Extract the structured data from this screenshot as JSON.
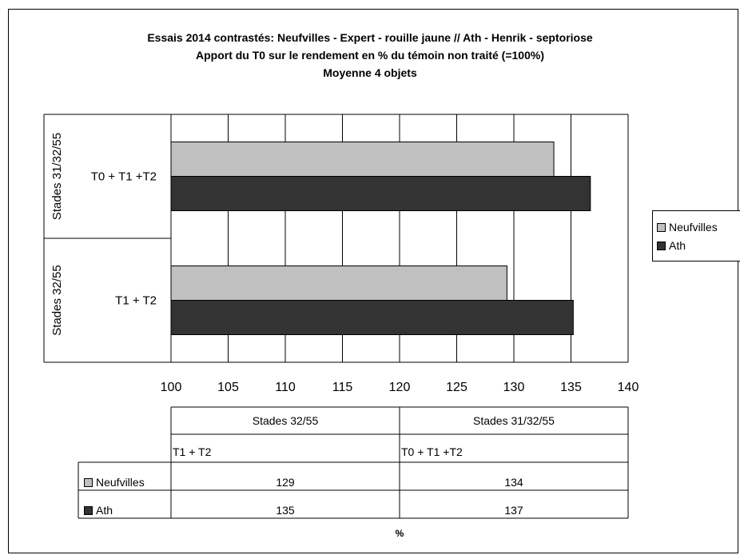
{
  "chart_data": {
    "type": "bar",
    "orientation": "horizontal",
    "title_lines": [
      "Essais 2014 contrastés: Neufvilles - Expert - rouille jaune // Ath - Henrik - septoriose",
      "Apport du T0 sur le rendement en % du témoin non traité (=100%)",
      "Moyenne 4 objets"
    ],
    "groups": [
      "Stades 32/55",
      "Stades 31/32/55"
    ],
    "categories": [
      "T1 + T2",
      "T0 + T1 +T2"
    ],
    "series": [
      {
        "name": "Neufvilles",
        "values": [
          129.4,
          133.5
        ],
        "color": "#c0c0c0"
      },
      {
        "name": "Ath",
        "values": [
          135.2,
          136.7
        ],
        "color": "#333333"
      }
    ],
    "xlabel": "%",
    "xlim": [
      100,
      140
    ],
    "xticks": [
      "100",
      "105",
      "110",
      "115",
      "120",
      "125",
      "130",
      "135",
      "140"
    ],
    "grid": true,
    "legend_position": "right",
    "table": {
      "group_headers": [
        "Stades 32/55",
        "Stades 31/32/55"
      ],
      "category_headers": [
        "T1 + T2",
        "T0 + T1 +T2"
      ],
      "rows": [
        {
          "label": "Neufvilles",
          "values": [
            "129",
            "134"
          ]
        },
        {
          "label": "Ath",
          "values": [
            "135",
            "137"
          ]
        }
      ]
    }
  }
}
